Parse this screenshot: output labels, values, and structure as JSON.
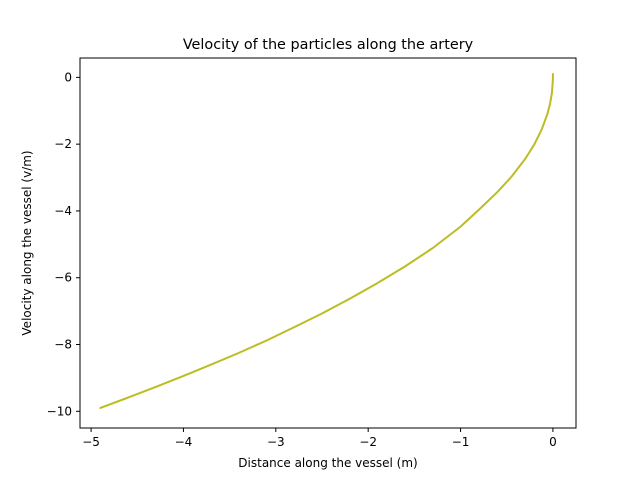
{
  "chart_data": {
    "type": "line",
    "title": "Velocity of the particles along the artery",
    "xlabel": "Distance along the vessel (m)",
    "ylabel": "Velocity along the vessel (v/m)",
    "xlim": [
      -5.12,
      0.25
    ],
    "ylim": [
      -10.5,
      0.58
    ],
    "xticks": [
      {
        "value": -5,
        "label": "−5"
      },
      {
        "value": -4,
        "label": "−4"
      },
      {
        "value": -3,
        "label": "−3"
      },
      {
        "value": -2,
        "label": "−2"
      },
      {
        "value": -1,
        "label": "−1"
      },
      {
        "value": 0,
        "label": "0"
      }
    ],
    "yticks": [
      {
        "value": -10,
        "label": "−10"
      },
      {
        "value": -8,
        "label": "−8"
      },
      {
        "value": -6,
        "label": "−6"
      },
      {
        "value": -4,
        "label": "−4"
      },
      {
        "value": -2,
        "label": "−2"
      },
      {
        "value": 0,
        "label": "0"
      }
    ],
    "grid": false,
    "series": [
      {
        "color": "#bcbd22",
        "x": [
          -4.9,
          -4.6,
          -4.3,
          -4.0,
          -3.7,
          -3.4,
          -3.1,
          -2.8,
          -2.5,
          -2.2,
          -1.9,
          -1.6,
          -1.3,
          -1.0,
          -0.8,
          -0.6,
          -0.45,
          -0.3,
          -0.2,
          -0.12,
          -0.06,
          -0.03,
          -0.01,
          0.0,
          0.0
        ],
        "y": [
          -9.9,
          -9.59,
          -9.27,
          -8.94,
          -8.6,
          -8.25,
          -7.88,
          -7.48,
          -7.07,
          -6.63,
          -6.16,
          -5.66,
          -5.11,
          -4.47,
          -3.96,
          -3.43,
          -2.98,
          -2.44,
          -2.0,
          -1.55,
          -1.1,
          -0.78,
          -0.45,
          -0.05,
          0.1
        ]
      }
    ]
  }
}
